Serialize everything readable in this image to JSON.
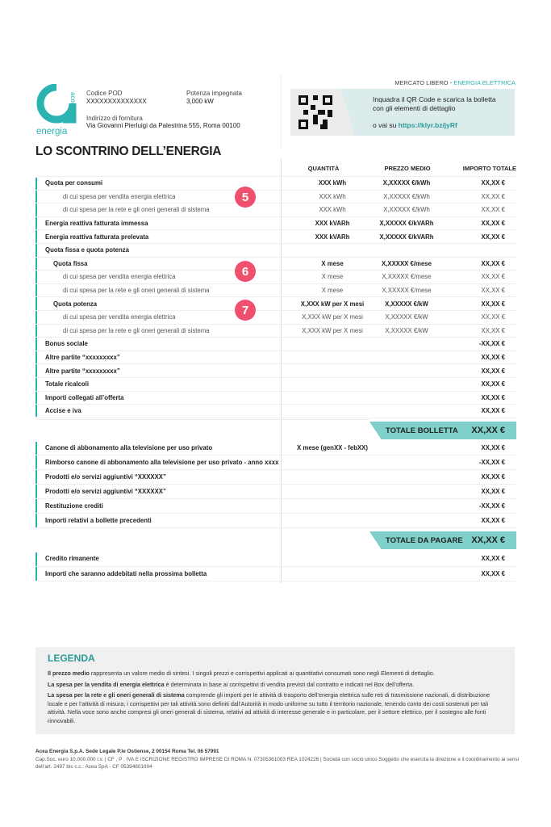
{
  "header": {
    "logo_text": "acea energia",
    "pod_label": "Codice POD",
    "pod_value": "XXXXXXXXXXXXXX",
    "potenza_label": "Potenza impegnata",
    "potenza_value": "3,000 kW",
    "address_label": "Indirizzo di fornitura",
    "address_value": "Via Giovanni Pierluigi da Palestrina 555, Roma 00100",
    "mercato": "MERCATO LIBERO - ",
    "mercato_accent": "ENERGIA ELETTRICA",
    "qr_line1": "Inquadra il QR Code e scarica la bolletta",
    "qr_line2": "con gli elementi di dettaglio",
    "qr_link_prefix": "o vai su ",
    "qr_link": "https://klyr.bz/jyRf"
  },
  "title": "LO SCONTRINO DELL’ENERGIA",
  "columns": [
    "QUANTITÀ",
    "PREZZO MEDIO",
    "IMPORTO TOTALE"
  ],
  "badges": [
    "5",
    "6",
    "7"
  ],
  "group1": [
    {
      "level": 0,
      "label": "Quota per consumi",
      "q": "XXX kWh",
      "p": "X,XXXXX €/kWh",
      "t": "XX,XX €"
    },
    {
      "level": 2,
      "label": "di cui spesa per vendita energia elettrica",
      "q": "XXX kWh",
      "p": "X,XXXXX €/kWh",
      "t": "XX,XX €"
    },
    {
      "level": 2,
      "label": "di cui spesa per la rete e gli oneri generali di sistema",
      "q": "XXX kWh",
      "p": "X,XXXXX €/kWh",
      "t": "XX,XX €"
    },
    {
      "level": 0,
      "label": "Energia reattiva fatturata immessa",
      "q": "XXX kVARh",
      "p": "X,XXXXX €/kVARh",
      "t": "XX,XX €"
    },
    {
      "level": 0,
      "label": "Energia reattiva fatturata prelevata",
      "q": "XXX kVARh",
      "p": "X,XXXXX €/kVARh",
      "t": "XX,XX €"
    },
    {
      "level": 0,
      "label": "Quota fissa e quota potenza",
      "q": "",
      "p": "",
      "t": ""
    },
    {
      "level": 1,
      "label": "Quota fissa",
      "q": "X mese",
      "p": "X,XXXXX €/mese",
      "t": "XX,XX €"
    },
    {
      "level": 2,
      "label": "di cui spesa per vendita energia elettrica",
      "q": "X mese",
      "p": "X,XXXXX €/mese",
      "t": "XX,XX €"
    },
    {
      "level": 2,
      "label": "di cui spesa per la rete e gli oneri generali di sistema",
      "q": "X mese",
      "p": "X,XXXXX €/mese",
      "t": "XX,XX €"
    },
    {
      "level": 1,
      "label": "Quota potenza",
      "q": "X,XXX kW per X mesi",
      "p": "X,XXXXX €/kW",
      "t": "XX,XX €"
    },
    {
      "level": 2,
      "label": "di cui spesa per vendita energia elettrica",
      "q": "X,XXX kW per X mesi",
      "p": "X,XXXXX €/kW",
      "t": "XX,XX €"
    },
    {
      "level": 2,
      "label": "di cui spesa per la rete e gli oneri generali di sistema",
      "q": "X,XXX kW per X mesi",
      "p": "X,XXXXX €/kW",
      "t": "XX,XX €"
    },
    {
      "level": 0,
      "label": "Bonus sociale",
      "q": "",
      "p": "",
      "t": "-XX,XX €"
    },
    {
      "level": 0,
      "label": "Altre partite “xxxxxxxxx”",
      "q": "",
      "p": "",
      "t": "XX,XX €"
    },
    {
      "level": 0,
      "label": "Altre partite “xxxxxxxxx”",
      "q": "",
      "p": "",
      "t": "XX,XX €"
    },
    {
      "level": 0,
      "label": "Totale ricalcoli",
      "q": "",
      "p": "",
      "t": "XX,XX €"
    },
    {
      "level": 0,
      "label": "Importi collegati all’offerta",
      "q": "",
      "p": "",
      "t": "XX,XX €"
    },
    {
      "level": 0,
      "label": "Accise e iva",
      "q": "",
      "p": "",
      "t": "XX,XX €"
    }
  ],
  "totale_bolletta": {
    "label": "TOTALE BOLLETTA",
    "value": "XX,XX €"
  },
  "group2": [
    {
      "level": 0,
      "label": "Canone di abbonamento alla televisione per uso privato",
      "q": "X mese (genXX - febXX)",
      "p": "",
      "t": "XX,XX €"
    },
    {
      "level": 0,
      "label": "Rimborso canone di abbonamento alla televisione per uso privato - anno xxxx",
      "q": "",
      "p": "",
      "t": "-XX,XX €"
    },
    {
      "level": 0,
      "label": "Prodotti e/o servizi aggiuntivi “XXXXXX”",
      "q": "",
      "p": "",
      "t": "XX,XX €"
    },
    {
      "level": 0,
      "label": "Prodotti e/o servizi aggiuntivi “XXXXXX”",
      "q": "",
      "p": "",
      "t": "XX,XX €"
    },
    {
      "level": 0,
      "label": "Restituzione crediti",
      "q": "",
      "p": "",
      "t": "-XX,XX €"
    },
    {
      "level": 0,
      "label": "Importi relativi a bollette precedenti",
      "q": "",
      "p": "",
      "t": "XX,XX €"
    }
  ],
  "totale_da_pagare": {
    "label": "TOTALE DA PAGARE",
    "value": "XX,XX €"
  },
  "group3": [
    {
      "level": 0,
      "label": "Credito rimanente",
      "q": "",
      "p": "",
      "t": "XX,XX €"
    },
    {
      "level": 0,
      "label": "Importi che saranno addebitati nella prossima bolletta",
      "q": "",
      "p": "",
      "t": "XX,XX €"
    }
  ],
  "legenda": {
    "title": "LEGENDA",
    "p1_bold": "Il prezzo medio",
    "p1": " rappresenta un valore medio di sintesi. I singoli prezzi e corrispettivi applicati ai quantitativi consumati sono negli Elementi di dettaglio.",
    "p2_bold": "La spesa per la vendita di energia elettrica",
    "p2": " è determinata in base ai corrispettivi di vendita previsti dal contratto e indicati nel Box dell’offerta.",
    "p3_bold": "La spesa per la rete e gli oneri generali di sistema",
    "p3": " comprende gli importi per le attività di trasporto dell’energia elettrica sulle reti di trasmissione nazionali, di distribuzione locale e per l’attività di misura; i corrispettivi per tali attività sono definiti dall’Autorità in modo uniforme su tutto il territorio nazionale, tenendo conto dei costi sostenuti per tali attività. Nella voce sono anche compresi gli oneri generali di sistema, relativi ad attività di interesse generale e in particolare, per il settore elettrico, per il sostegno alle fonti rinnovabili."
  },
  "footer": {
    "line1": "Acea Energia S.p.A. Sede Legale P.le Ostiense, 2 00154 Roma Tel. 06 57991",
    "line2": "Cap.Soc. euro 10.000.000 i.v. | CF , P . IVA E ISCRIZIONE REGISTRO IMPRESE DI ROMA N. 07305361003 REA 1024226 | Società con socio unico Soggetto che esercita la direzione e il coordinamento ai sensi dell’art. 2497 bis c.c.: Acea SpA - CF 05394801004"
  },
  "colors": {
    "teal": "#2ab3b1",
    "band": "#7fd0ca",
    "badge": "#f0506e",
    "qr_panel": "#dcebec"
  }
}
